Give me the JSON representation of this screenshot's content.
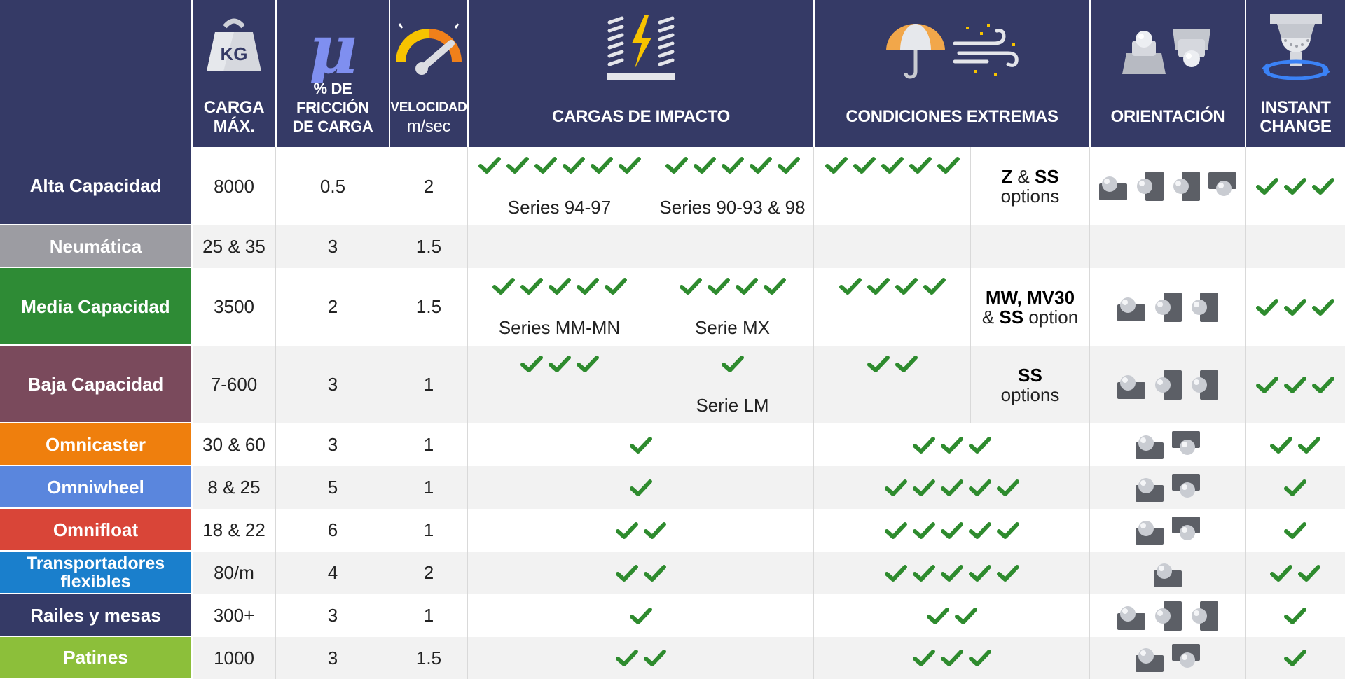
{
  "header": {
    "kg_icon": "KG",
    "mu_icon": "μ",
    "carga": [
      "CARGA",
      "MÁX."
    ],
    "friccion": [
      "% DE FRICCIÓN",
      "DE CARGA"
    ],
    "velocidad": [
      "VELOCIDAD",
      "m/sec"
    ],
    "impacto": "CARGAS DE IMPACTO",
    "extremas": "CONDICIONES EXTREMAS",
    "orientacion": "ORIENTACIÓN",
    "instant": [
      "INSTANT",
      "CHANGE"
    ],
    "icons": [
      "kettlebell-weight-icon",
      "friction-mu-icon",
      "speedometer-icon",
      "impact-spring-bolt-icon",
      "umbrella-wind-icon",
      "orientation-transfer-units-icon",
      "instant-change-rotate-icon"
    ]
  },
  "colors": {
    "header_bg": "#353a66",
    "check": "#2e8b2e",
    "alta": "#353a66",
    "neumatica": "#9c9ca2",
    "media": "#2e8b35",
    "baja": "#7a4a5c",
    "omnicaster": "#ef7f0d",
    "omniwheel": "#5a86dd",
    "omnifloat": "#d94538",
    "transportadores": "#1a7fcc",
    "railes": "#353a66",
    "patines": "#8cbf3a"
  },
  "rows": [
    {
      "label": "Alta Capacidad",
      "carga": "8000",
      "friccion": "0.5",
      "velocidad": "2",
      "impacto_a": {
        "checks": 6,
        "series": "Series 94-97"
      },
      "impacto_b": {
        "checks": 5,
        "series": "Series 90-93 & 98"
      },
      "extremas_checks": 5,
      "opt": {
        "line1_b1": "Z",
        "line1_mid": " & ",
        "line1_b2": "SS",
        "line2": "options"
      },
      "orient": [
        "up",
        "wall",
        "wall",
        "down"
      ],
      "instant": 3
    },
    {
      "label": "Neumática",
      "carga": "25 & 35",
      "friccion": "3",
      "velocidad": "1.5"
    },
    {
      "label": "Media Capacidad",
      "carga": "3500",
      "friccion": "2",
      "velocidad": "1.5",
      "impacto_a": {
        "checks": 5,
        "series": "Series MM-MN"
      },
      "impacto_b": {
        "checks": 4,
        "series": "Serie MX"
      },
      "extremas_checks": 4,
      "opt": {
        "line1_b1": "MW, MV30",
        "line2_pre": "& ",
        "line2_b": "SS",
        "line2": " option"
      },
      "orient": [
        "up",
        "wall",
        "wall"
      ],
      "instant": 3
    },
    {
      "label": "Baja Capacidad",
      "carga": "7-600",
      "friccion": "3",
      "velocidad": "1",
      "impacto_a": {
        "checks": 3,
        "series": ""
      },
      "impacto_b": {
        "checks": 1,
        "series": "Serie LM"
      },
      "extremas_checks": 2,
      "opt": {
        "line1_b1": "SS",
        "line2": "options"
      },
      "orient": [
        "up",
        "wall",
        "wall"
      ],
      "instant": 3
    },
    {
      "label": "Omnicaster",
      "carga": "30 & 60",
      "friccion": "3",
      "velocidad": "1",
      "impacto": 1,
      "extremas": 3,
      "orient": [
        "up",
        "down"
      ],
      "instant": 2
    },
    {
      "label": "Omniwheel",
      "carga": "8 & 25",
      "friccion": "5",
      "velocidad": "1",
      "impacto": 1,
      "extremas": 5,
      "orient": [
        "up",
        "down"
      ],
      "instant": 1
    },
    {
      "label": "Omnifloat",
      "carga": "18 & 22",
      "friccion": "6",
      "velocidad": "1",
      "impacto": 2,
      "extremas": 5,
      "orient": [
        "up",
        "down"
      ],
      "instant": 1
    },
    {
      "label": "Transportadores flexibles",
      "carga": "80/m",
      "friccion": "4",
      "velocidad": "2",
      "impacto": 2,
      "extremas": 5,
      "orient": [
        "up"
      ],
      "instant": 2
    },
    {
      "label": "Railes y mesas",
      "carga": "300+",
      "friccion": "3",
      "velocidad": "1",
      "impacto": 1,
      "extremas": 2,
      "orient": [
        "up",
        "wall",
        "wall"
      ],
      "instant": 1
    },
    {
      "label": "Patines",
      "carga": "1000",
      "friccion": "3",
      "velocidad": "1.5",
      "impacto": 2,
      "extremas": 3,
      "orient": [
        "up",
        "down"
      ],
      "instant": 1
    }
  ]
}
